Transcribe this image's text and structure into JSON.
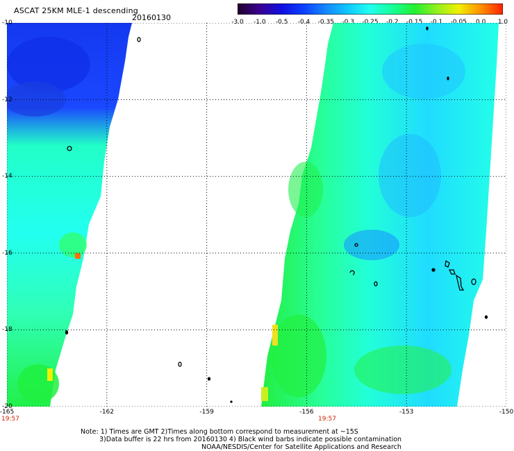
{
  "header": {
    "title": "ASCAT 25KM MLE-1 descending",
    "date": "20160130"
  },
  "colorbar": {
    "labels": [
      "-3.0",
      "-1.0",
      "-0.5",
      "-0.4",
      "-0.35",
      "-0.3",
      "-0.25",
      "-0.2",
      "-0.15",
      "-0.1",
      "-0.05",
      "0.0",
      "1.0"
    ],
    "colors": [
      "#20002a",
      "#3a0090",
      "#1010e0",
      "#0a40ff",
      "#1488ff",
      "#10c8ff",
      "#22ffee",
      "#16ff9a",
      "#22f030",
      "#90f020",
      "#f0f000",
      "#ff9000",
      "#ff2000"
    ]
  },
  "axes": {
    "lat_labels": [
      "-10",
      "-12",
      "-14",
      "-16",
      "-18",
      "-20"
    ],
    "lon_labels": [
      "-165",
      "-162",
      "-159",
      "-156",
      "-153",
      "-150"
    ],
    "lat_range": [
      -20,
      -10
    ],
    "lon_range": [
      -165,
      -150
    ]
  },
  "times": {
    "left": "19:57",
    "right": "19:57"
  },
  "notes": {
    "line1": "Note: 1) Times are GMT 2)Times along bottom correspond to measurement at ~15S",
    "line2": "3)Data buffer is 22 hrs from 20160130 4) Black wind barbs indicate possible contamination",
    "line3": "NOAA/NESDIS/Center for Satellite Applications and Research"
  }
}
